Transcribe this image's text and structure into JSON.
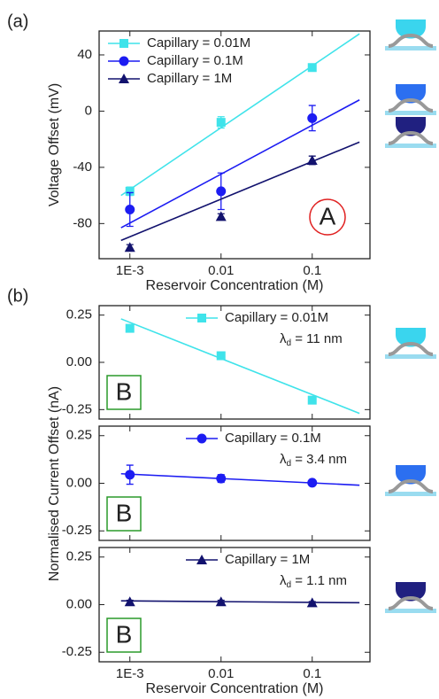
{
  "chart_data": [
    {
      "type": "scatter",
      "panel_label": "(a)",
      "ylabel": "Voltage Offset (mV)",
      "xlabel": "Reservoir Concentration (M)",
      "xscale": "log",
      "xlim": [
        0.00046,
        0.43
      ],
      "xticks": [
        {
          "value": 0.001,
          "label": "1E-3"
        },
        0.01,
        0.1
      ],
      "ylim": [
        -105,
        57
      ],
      "yticks": [
        40,
        0,
        -40,
        -80
      ],
      "legend": "upper left",
      "annotation": "A",
      "annotation_color": "#e02020",
      "series": [
        {
          "name": "Capillary = 0.01M",
          "color": "#3fe3ea",
          "marker": "square",
          "x": [
            0.001,
            0.01,
            0.1
          ],
          "values": [
            -57,
            -8,
            31
          ],
          "errors": [
            3,
            4,
            2
          ],
          "fit": {
            "x": [
              0.0008,
              0.33
            ],
            "values": [
              -60,
              55
            ]
          }
        },
        {
          "name": "Capillary = 0.1M",
          "color": "#1c1cf2",
          "marker": "circle",
          "x": [
            0.001,
            0.01,
            0.1
          ],
          "values": [
            -70,
            -57,
            -5
          ],
          "errors": [
            12,
            13,
            9
          ],
          "fit": {
            "x": [
              0.0008,
              0.33
            ],
            "values": [
              -83,
              8
            ]
          }
        },
        {
          "name": "Capillary = 1M",
          "color": "#12126e",
          "marker": "triangle",
          "x": [
            0.001,
            0.01,
            0.1
          ],
          "values": [
            -97,
            -75,
            -35
          ],
          "errors": [
            2,
            2,
            3
          ],
          "fit": {
            "x": [
              0.0008,
              0.33
            ],
            "values": [
              -92,
              -22
            ]
          }
        }
      ]
    },
    {
      "type": "scatter",
      "panel_label": "(b)",
      "ylabel": "Normalised Current Offset (nA)",
      "xscale": "log",
      "xlim": [
        0.00046,
        0.43
      ],
      "xticks": [
        0.001,
        0.01,
        0.1
      ],
      "xticklabels": false,
      "ylim": [
        -0.3,
        0.3
      ],
      "yticks": [
        0.25,
        {
          "value": 0,
          "label": "0.00"
        },
        -0.25
      ],
      "legend": "upper right",
      "annotation": "B",
      "annotation_color": "#2a9a2a",
      "series": [
        {
          "name": "Capillary = 0.01M",
          "note": {
            "symbol": "λ",
            "subscript": "d",
            "text": " = 11 nm"
          },
          "color": "#3fe3ea",
          "marker": "square",
          "x": [
            0.001,
            0.01,
            0.1
          ],
          "values": [
            0.18,
            0.035,
            -0.2
          ],
          "errors": [
            0.012,
            0.018,
            0.012
          ],
          "fit": {
            "x": [
              0.0008,
              0.33
            ],
            "values": [
              0.23,
              -0.27
            ]
          }
        }
      ]
    },
    {
      "type": "scatter",
      "xscale": "log",
      "xlim": [
        0.00046,
        0.43
      ],
      "xticks": [
        0.001,
        0.01,
        0.1
      ],
      "xticklabels": false,
      "ylim": [
        -0.3,
        0.3
      ],
      "yticks": [
        0.25,
        {
          "value": 0,
          "label": "0.00"
        },
        -0.25
      ],
      "legend": "upper right",
      "annotation": "B",
      "annotation_color": "#2a9a2a",
      "series": [
        {
          "name": "Capillary = 0.1M",
          "note": {
            "symbol": "λ",
            "subscript": "d",
            "text": " = 3.4 nm"
          },
          "color": "#1c1cf2",
          "marker": "circle",
          "x": [
            0.001,
            0.01,
            0.1
          ],
          "values": [
            0.045,
            0.025,
            0.003
          ],
          "errors": [
            0.05,
            0.02,
            0.005
          ],
          "fit": {
            "x": [
              0.0008,
              0.33
            ],
            "values": [
              0.05,
              -0.01
            ]
          }
        }
      ]
    },
    {
      "type": "scatter",
      "xlabel": "Reservoir Concentration (M)",
      "xscale": "log",
      "xlim": [
        0.00046,
        0.43
      ],
      "xticks": [
        {
          "value": 0.001,
          "label": "1E-3"
        },
        0.01,
        0.1
      ],
      "ylim": [
        -0.3,
        0.3
      ],
      "yticks": [
        0.25,
        {
          "value": 0,
          "label": "0.00"
        },
        -0.25
      ],
      "legend": "upper right",
      "annotation": "B",
      "annotation_color": "#2a9a2a",
      "series": [
        {
          "name": "Capillary = 1M",
          "note": {
            "symbol": "λ",
            "subscript": "d",
            "text": " = 1.1 nm"
          },
          "color": "#12126e",
          "marker": "triangle",
          "x": [
            0.001,
            0.01,
            0.1
          ],
          "values": [
            0.015,
            0.015,
            0.01
          ],
          "errors": [
            0.008,
            0.008,
            0.006
          ],
          "fit": {
            "x": [
              0.0008,
              0.33
            ],
            "values": [
              0.02,
              0.01
            ]
          }
        }
      ]
    }
  ]
}
